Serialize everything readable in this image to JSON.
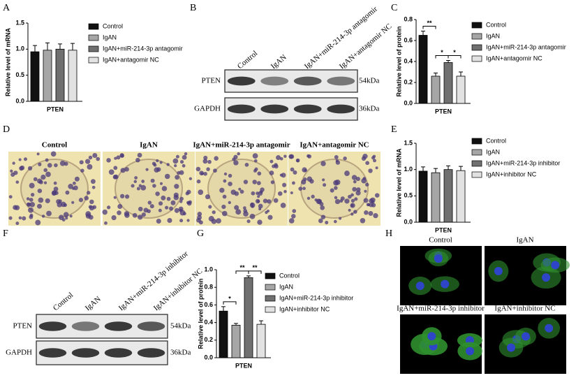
{
  "panel_labels": [
    "A",
    "B",
    "C",
    "D",
    "E",
    "F",
    "G",
    "H"
  ],
  "blot_b": {
    "columns": [
      "Control",
      "IgAN",
      "IgAN+miR-214-3p antagomir",
      "IgAN+antagomir NC"
    ],
    "rows": [
      "PTEN",
      "GAPDH"
    ],
    "sizes": [
      "54kDa",
      "36kDa"
    ]
  },
  "staining": {
    "columns": [
      "Control",
      "IgAN",
      "IgAN+miR-214-3p antagomir",
      "IgAN+antagomir NC"
    ]
  },
  "blot_f": {
    "columns": [
      "Control",
      "IgAN",
      "IgAN+miR-214-3p inhibitor",
      "IgAN+inhibitor NC"
    ],
    "rows": [
      "PTEN",
      "GAPDH"
    ],
    "sizes": [
      "54kDa",
      "36kDa"
    ]
  },
  "immunofluorescence": {
    "labels": [
      "Control",
      "IgAN",
      "IgAN+miR-214-3p inhibitor",
      "IgAN+inhibitor NC"
    ]
  },
  "chart_data": [
    {
      "type": "bar",
      "ylabel": "Relative level of mRNA",
      "categories": [
        "PTEN"
      ],
      "ylim": [
        0,
        1.5
      ],
      "yticks": [
        {
          "value": 0,
          "label": "0.0"
        },
        {
          "value": 0.5,
          "label": "0.5"
        },
        {
          "value": 1,
          "label": "1.0"
        },
        {
          "value": 1.5,
          "label": "1.5"
        }
      ],
      "series": [
        {
          "name": "Control",
          "color": "#111111",
          "values": [
            0.95
          ],
          "errors": [
            0.12
          ]
        },
        {
          "name": "IgAN",
          "color": "#a6a6a6",
          "values": [
            0.98
          ],
          "errors": [
            0.14
          ]
        },
        {
          "name": "IgAN+miR-214-3p antagomir",
          "color": "#707070",
          "values": [
            1.0
          ],
          "errors": [
            0.1
          ]
        },
        {
          "name": "IgAN+antagomir NC",
          "color": "#e2e2e2",
          "values": [
            0.98
          ],
          "errors": [
            0.13
          ]
        }
      ]
    },
    {
      "type": "bar",
      "ylabel": "Relative level of protein",
      "categories": [
        "PTEN"
      ],
      "ylim": [
        0,
        0.8
      ],
      "yticks": [
        {
          "value": 0,
          "label": "0.0"
        },
        {
          "value": 0.2,
          "label": "0.2"
        },
        {
          "value": 0.4,
          "label": "0.4"
        },
        {
          "value": 0.6,
          "label": "0.6"
        },
        {
          "value": 0.8,
          "label": "0.8"
        }
      ],
      "significance": [
        "**",
        "*",
        "*"
      ],
      "series": [
        {
          "name": "Control",
          "color": "#111111",
          "values": [
            0.65
          ],
          "errors": [
            0.04
          ]
        },
        {
          "name": "IgAN",
          "color": "#a6a6a6",
          "values": [
            0.26
          ],
          "errors": [
            0.03
          ]
        },
        {
          "name": "IgAN+miR-214-3p antagomir",
          "color": "#707070",
          "values": [
            0.39
          ],
          "errors": [
            0.02
          ]
        },
        {
          "name": "IgAN+antagomir NC",
          "color": "#e2e2e2",
          "values": [
            0.26
          ],
          "errors": [
            0.04
          ]
        }
      ]
    },
    {
      "type": "bar",
      "ylabel": "Relative level of mRNA",
      "categories": [
        "PTEN"
      ],
      "ylim": [
        0,
        1.5
      ],
      "yticks": [
        {
          "value": 0,
          "label": "0.0"
        },
        {
          "value": 0.5,
          "label": "0.5"
        },
        {
          "value": 1,
          "label": "1.0"
        },
        {
          "value": 1.5,
          "label": "1.5"
        }
      ],
      "series": [
        {
          "name": "Control",
          "color": "#111111",
          "values": [
            0.97
          ],
          "errors": [
            0.08
          ]
        },
        {
          "name": "IgAN",
          "color": "#a6a6a6",
          "values": [
            0.94
          ],
          "errors": [
            0.08
          ]
        },
        {
          "name": "IgAN+miR-214-3p inhibitor",
          "color": "#707070",
          "values": [
            1.0
          ],
          "errors": [
            0.07
          ]
        },
        {
          "name": "IgAN+inhibitor NC",
          "color": "#e2e2e2",
          "values": [
            0.98
          ],
          "errors": [
            0.08
          ]
        }
      ]
    },
    {
      "type": "bar",
      "ylabel": "Relative level of protein",
      "categories": [
        "PTEN"
      ],
      "ylim": [
        0,
        1.0
      ],
      "yticks": [
        {
          "value": 0,
          "label": "0.0"
        },
        {
          "value": 0.2,
          "label": "0.2"
        },
        {
          "value": 0.4,
          "label": "0.4"
        },
        {
          "value": 0.6,
          "label": "0.6"
        },
        {
          "value": 0.8,
          "label": "0.8"
        },
        {
          "value": 1.0,
          "label": "1.0"
        }
      ],
      "significance": [
        "*",
        "**",
        "**"
      ],
      "series": [
        {
          "name": "Control",
          "color": "#111111",
          "values": [
            0.53
          ],
          "errors": [
            0.05
          ]
        },
        {
          "name": "IgAN",
          "color": "#a6a6a6",
          "values": [
            0.37
          ],
          "errors": [
            0.02
          ]
        },
        {
          "name": "IgAN+miR-214-3p inhibitor",
          "color": "#707070",
          "values": [
            0.91
          ],
          "errors": [
            0.02
          ]
        },
        {
          "name": "IgAN+inhibitor NC",
          "color": "#e2e2e2",
          "values": [
            0.38
          ],
          "errors": [
            0.04
          ]
        }
      ]
    }
  ]
}
